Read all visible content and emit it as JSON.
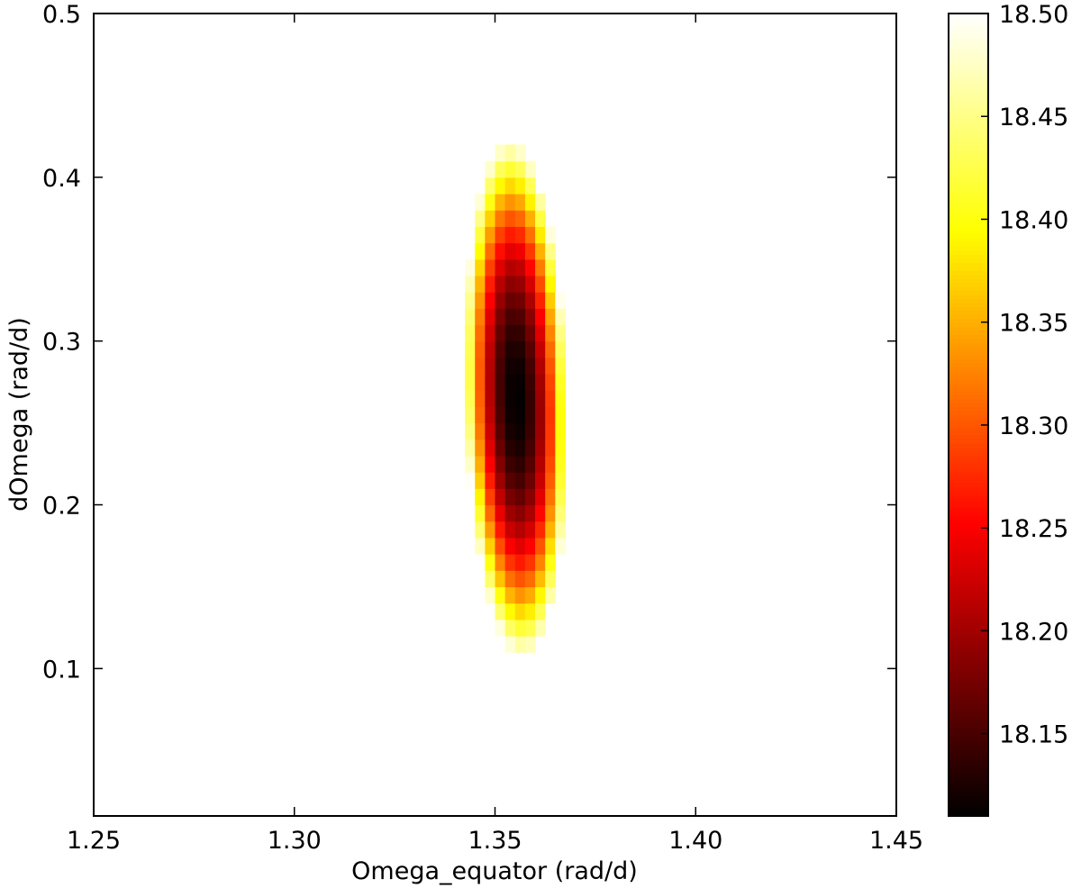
{
  "chart_data": {
    "type": "heatmap",
    "title": "",
    "xlabel": "Omega_equator (rad/d)",
    "ylabel": "dOmega (rad/d)",
    "xlim": [
      1.25,
      1.45
    ],
    "ylim": [
      0.01,
      0.5
    ],
    "xticks": [
      "1.25",
      "1.30",
      "1.35",
      "1.40",
      "1.45"
    ],
    "xtick_values": [
      1.25,
      1.3,
      1.35,
      1.4,
      1.45
    ],
    "yticks": [
      "0.1",
      "0.2",
      "0.3",
      "0.4",
      "0.5"
    ],
    "ytick_values": [
      0.1,
      0.2,
      0.3,
      0.4,
      0.5
    ],
    "colormap": "hot",
    "colorbar": {
      "range": [
        18.11,
        18.5
      ],
      "ticks": [
        "18.15",
        "18.20",
        "18.25",
        "18.30",
        "18.35",
        "18.40",
        "18.45",
        "18.50"
      ],
      "tick_values": [
        18.15,
        18.2,
        18.25,
        18.3,
        18.35,
        18.4,
        18.45,
        18.5
      ]
    },
    "minimum": {
      "omega_equator": 1.354,
      "domega": 0.265,
      "value": 18.11
    },
    "grid": {
      "x_start": 1.25,
      "x_step": 0.0025,
      "nx": 80,
      "y_start": 0.01,
      "y_step": 0.01,
      "ny": 49
    },
    "valley": {
      "center_x": 1.3552,
      "center_y": 0.265,
      "center_y_tilt": 0.004,
      "half_width_x": 0.0127,
      "half_height_y": 0.158,
      "tilt_x_per_y": -0.01
    }
  }
}
